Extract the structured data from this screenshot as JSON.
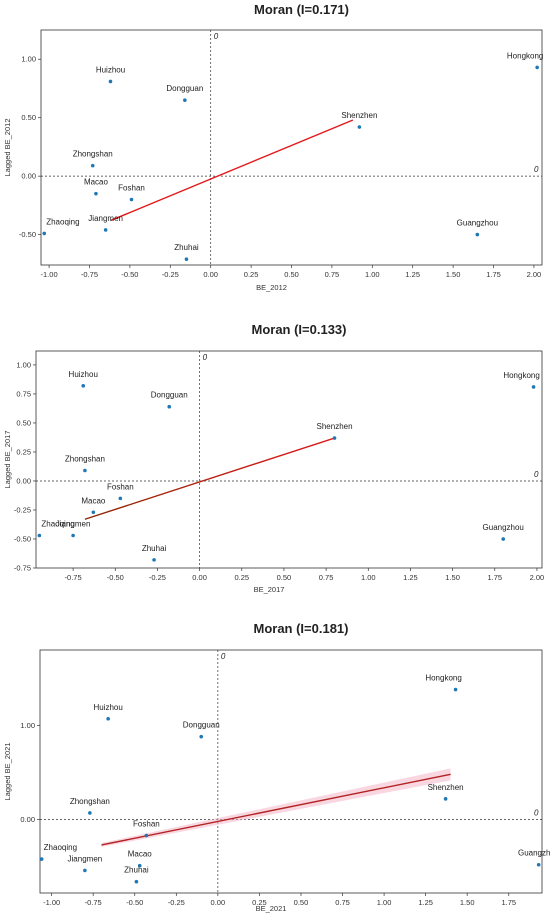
{
  "chart_data": [
    {
      "type": "scatter",
      "title": "Moran (I=0.171)",
      "xlabel": "BE_2012",
      "ylabel": "Lagged BE_2012",
      "zero_label": "0",
      "xlim": [
        -1.05,
        2.05
      ],
      "ylim": [
        -0.76,
        1.25
      ],
      "xticks": [
        "-1.00",
        "-0.75",
        "-0.50",
        "-0.25",
        "0.00",
        "0.25",
        "0.50",
        "0.75",
        "1.00",
        "1.25",
        "1.50",
        "1.75",
        "2.00"
      ],
      "xtick_values": [
        -1.0,
        -0.75,
        -0.5,
        -0.25,
        0.0,
        0.25,
        0.5,
        0.75,
        1.0,
        1.25,
        1.5,
        1.75,
        2.0
      ],
      "yticks": [
        "-0.50",
        "0.00",
        "0.50",
        "1.00"
      ],
      "ytick_values": [
        -0.5,
        0.0,
        0.5,
        1.0
      ],
      "points": [
        {
          "label": "Hongkong",
          "x": 2.02,
          "y": 0.93
        },
        {
          "label": "Huizhou",
          "x": -0.62,
          "y": 0.81
        },
        {
          "label": "Dongguan",
          "x": -0.16,
          "y": 0.65
        },
        {
          "label": "Shenzhen",
          "x": 0.92,
          "y": 0.42
        },
        {
          "label": "Zhongshan",
          "x": -0.73,
          "y": 0.09
        },
        {
          "label": "Macao",
          "x": -0.71,
          "y": -0.15
        },
        {
          "label": "Foshan",
          "x": -0.49,
          "y": -0.2
        },
        {
          "label": "Jiangmen",
          "x": -0.65,
          "y": -0.46
        },
        {
          "label": "Zhaoqing",
          "x": -1.03,
          "y": -0.49
        },
        {
          "label": "Zhuhai",
          "x": -0.15,
          "y": -0.71
        },
        {
          "label": "Guangzhou",
          "x": 1.65,
          "y": -0.5
        }
      ],
      "fit_line": {
        "x": [
          -0.62,
          0.88
        ],
        "y": [
          -0.38,
          0.48
        ],
        "color": "#e41a1c"
      }
    },
    {
      "type": "scatter",
      "title": "Moran (I=0.133)",
      "xlabel": "BE_2017",
      "ylabel": "Lagged BE_2017",
      "zero_label": "0",
      "xlim": [
        -0.97,
        2.03
      ],
      "ylim": [
        -0.75,
        1.12
      ],
      "xticks": [
        "-0.75",
        "-0.50",
        "-0.25",
        "0.00",
        "0.25",
        "0.50",
        "0.75",
        "1.00",
        "1.25",
        "1.50",
        "1.75",
        "2.00"
      ],
      "xtick_values": [
        -0.75,
        -0.5,
        -0.25,
        0.0,
        0.25,
        0.5,
        0.75,
        1.0,
        1.25,
        1.5,
        1.75,
        2.0
      ],
      "yticks": [
        "-0.75",
        "-0.50",
        "-0.25",
        "0.00",
        "0.25",
        "0.50",
        "0.75",
        "1.00"
      ],
      "ytick_values": [
        -0.75,
        -0.5,
        -0.25,
        0.0,
        0.25,
        0.5,
        0.75,
        1.0
      ],
      "points": [
        {
          "label": "Hongkong",
          "x": 1.98,
          "y": 0.81
        },
        {
          "label": "Huizhou",
          "x": -0.69,
          "y": 0.82
        },
        {
          "label": "Dongguan",
          "x": -0.18,
          "y": 0.64
        },
        {
          "label": "Shenzhen",
          "x": 0.8,
          "y": 0.37
        },
        {
          "label": "Zhongshan",
          "x": -0.68,
          "y": 0.09
        },
        {
          "label": "Foshan",
          "x": -0.47,
          "y": -0.15
        },
        {
          "label": "Macao",
          "x": -0.63,
          "y": -0.27
        },
        {
          "label": "Zhaoqing",
          "x": -0.95,
          "y": -0.47
        },
        {
          "label": "Jiangmen",
          "x": -0.75,
          "y": -0.47
        },
        {
          "label": "Zhuhai",
          "x": -0.27,
          "y": -0.68
        },
        {
          "label": "Guangzhou",
          "x": 1.8,
          "y": -0.5
        }
      ],
      "fit_line": {
        "x": [
          -0.68,
          0.8
        ],
        "y": [
          -0.33,
          0.37
        ],
        "color": "#e41a1c",
        "start_color": "#8b2500"
      }
    },
    {
      "type": "scatter",
      "title": "Moran (I=0.181)",
      "xlabel": "BE_2021",
      "ylabel": "Lagged BE_2021",
      "zero_label": "0",
      "xlim": [
        -1.07,
        1.95
      ],
      "ylim": [
        -0.78,
        1.8
      ],
      "xticks": [
        "-1.00",
        "-0.75",
        "-0.50",
        "-0.25",
        "0.00",
        "0.25",
        "0.50",
        "0.75",
        "1.00",
        "1.25",
        "1.50",
        "1.75"
      ],
      "xtick_values": [
        -1.0,
        -0.75,
        -0.5,
        -0.25,
        0.0,
        0.25,
        0.5,
        0.75,
        1.0,
        1.25,
        1.5,
        1.75
      ],
      "yticks": [
        "0.00",
        "1.00"
      ],
      "ytick_values": [
        0.0,
        1.0
      ],
      "points": [
        {
          "label": "Hongkong",
          "x": 1.43,
          "y": 1.38
        },
        {
          "label": "Huizhou",
          "x": -0.66,
          "y": 1.07
        },
        {
          "label": "Dongguan",
          "x": -0.1,
          "y": 0.88
        },
        {
          "label": "Shenzhen",
          "x": 1.37,
          "y": 0.22
        },
        {
          "label": "Zhongshan",
          "x": -0.77,
          "y": 0.07
        },
        {
          "label": "Foshan",
          "x": -0.43,
          "y": -0.17
        },
        {
          "label": "Zhaoqing",
          "x": -1.06,
          "y": -0.42
        },
        {
          "label": "Jiangmen",
          "x": -0.8,
          "y": -0.54
        },
        {
          "label": "Macao",
          "x": -0.47,
          "y": -0.49
        },
        {
          "label": "Zhuhai",
          "x": -0.49,
          "y": -0.66
        },
        {
          "label": "Guangzhou",
          "x": 1.93,
          "y": -0.48
        }
      ],
      "fit_line": {
        "x": [
          -0.7,
          1.4
        ],
        "y": [
          -0.27,
          0.48
        ],
        "color": "#b22222",
        "band": true
      }
    }
  ]
}
